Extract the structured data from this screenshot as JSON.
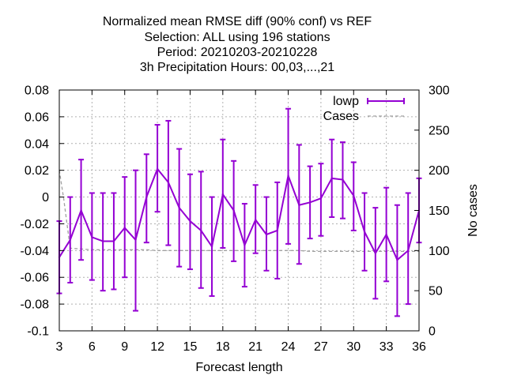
{
  "chart_data": {
    "type": "line",
    "title": [
      "Normalized mean RMSE diff (90% conf) vs REF",
      "Selection: ALL using   196 stations",
      "Period: 20210203-20210228",
      "3h Precipitation   Hours:  00,03,...,21"
    ],
    "xlabel": "Forecast length",
    "ylabel": "",
    "y2label": "No cases",
    "xlim": [
      3,
      36
    ],
    "ylim": [
      -0.1,
      0.08
    ],
    "y2lim": [
      0,
      300
    ],
    "xticks": [
      3,
      6,
      9,
      12,
      15,
      18,
      21,
      24,
      27,
      30,
      33,
      36
    ],
    "yticks": [
      -0.1,
      -0.08,
      -0.06,
      -0.04,
      -0.02,
      0,
      0.02,
      0.04,
      0.06,
      0.08
    ],
    "ytick_labels": [
      "-0.1",
      "-0.08",
      "-0.06",
      "-0.04",
      "-0.02",
      "0",
      "0.02",
      "0.04",
      "0.06",
      "0.08"
    ],
    "y2ticks": [
      0,
      50,
      100,
      150,
      200,
      250,
      300
    ],
    "y2tick_labels": [
      "0",
      "50",
      "100",
      "150",
      "200",
      "250",
      "300"
    ],
    "grid": true,
    "legend_position": "top-right",
    "series": [
      {
        "name": "lowp",
        "color": "#9400d3",
        "style": "line-errorbars",
        "axis": "y",
        "x": [
          3,
          4,
          5,
          6,
          7,
          8,
          9,
          10,
          11,
          12,
          13,
          14,
          15,
          16,
          17,
          18,
          19,
          20,
          21,
          22,
          23,
          24,
          25,
          26,
          27,
          28,
          29,
          30,
          31,
          32,
          33,
          34,
          35,
          36
        ],
        "y": [
          -0.045,
          -0.032,
          -0.01,
          -0.03,
          -0.033,
          -0.033,
          -0.023,
          -0.032,
          0.0,
          0.021,
          0.011,
          -0.008,
          -0.018,
          -0.025,
          -0.037,
          0.002,
          -0.01,
          -0.036,
          -0.017,
          -0.028,
          -0.025,
          0.016,
          -0.006,
          -0.004,
          -0.001,
          0.014,
          0.013,
          0.001,
          -0.026,
          -0.042,
          -0.028,
          -0.047,
          -0.04,
          -0.01
        ],
        "ylow": [
          -0.072,
          -0.064,
          -0.047,
          -0.062,
          -0.07,
          -0.069,
          -0.06,
          -0.085,
          -0.034,
          -0.011,
          -0.036,
          -0.052,
          -0.054,
          -0.068,
          -0.074,
          -0.038,
          -0.048,
          -0.067,
          -0.042,
          -0.055,
          -0.061,
          -0.035,
          -0.05,
          -0.031,
          -0.029,
          -0.015,
          -0.016,
          -0.025,
          -0.055,
          -0.076,
          -0.063,
          -0.089,
          -0.08,
          -0.034
        ],
        "yhigh": [
          -0.018,
          0.0,
          0.028,
          0.003,
          0.003,
          0.003,
          0.015,
          0.02,
          0.032,
          0.054,
          0.057,
          0.036,
          0.017,
          0.019,
          0.0,
          0.043,
          0.027,
          -0.005,
          0.009,
          0.0,
          0.011,
          0.066,
          0.039,
          0.023,
          0.025,
          0.043,
          0.041,
          0.026,
          0.003,
          -0.008,
          0.007,
          -0.006,
          0.003,
          0.014
        ]
      },
      {
        "name": "Cases",
        "color": "#a0a0a0",
        "style": "dashed",
        "axis": "y2",
        "x": [
          3,
          3.4,
          4,
          5,
          6,
          7,
          8,
          9,
          10,
          11,
          12,
          13,
          14,
          15,
          16,
          17,
          18,
          19,
          20,
          21,
          22,
          23,
          24,
          25,
          26,
          27,
          28,
          29,
          30,
          31,
          32,
          33,
          34,
          35,
          36
        ],
        "y": [
          200,
          165,
          103,
          102,
          101,
          101,
          101,
          101,
          101,
          101,
          100,
          100,
          100,
          100,
          100,
          100,
          100,
          100,
          100,
          100,
          100,
          100,
          100,
          100,
          99,
          99,
          99,
          99,
          99,
          99,
          99,
          99,
          99,
          99,
          99
        ]
      }
    ]
  }
}
